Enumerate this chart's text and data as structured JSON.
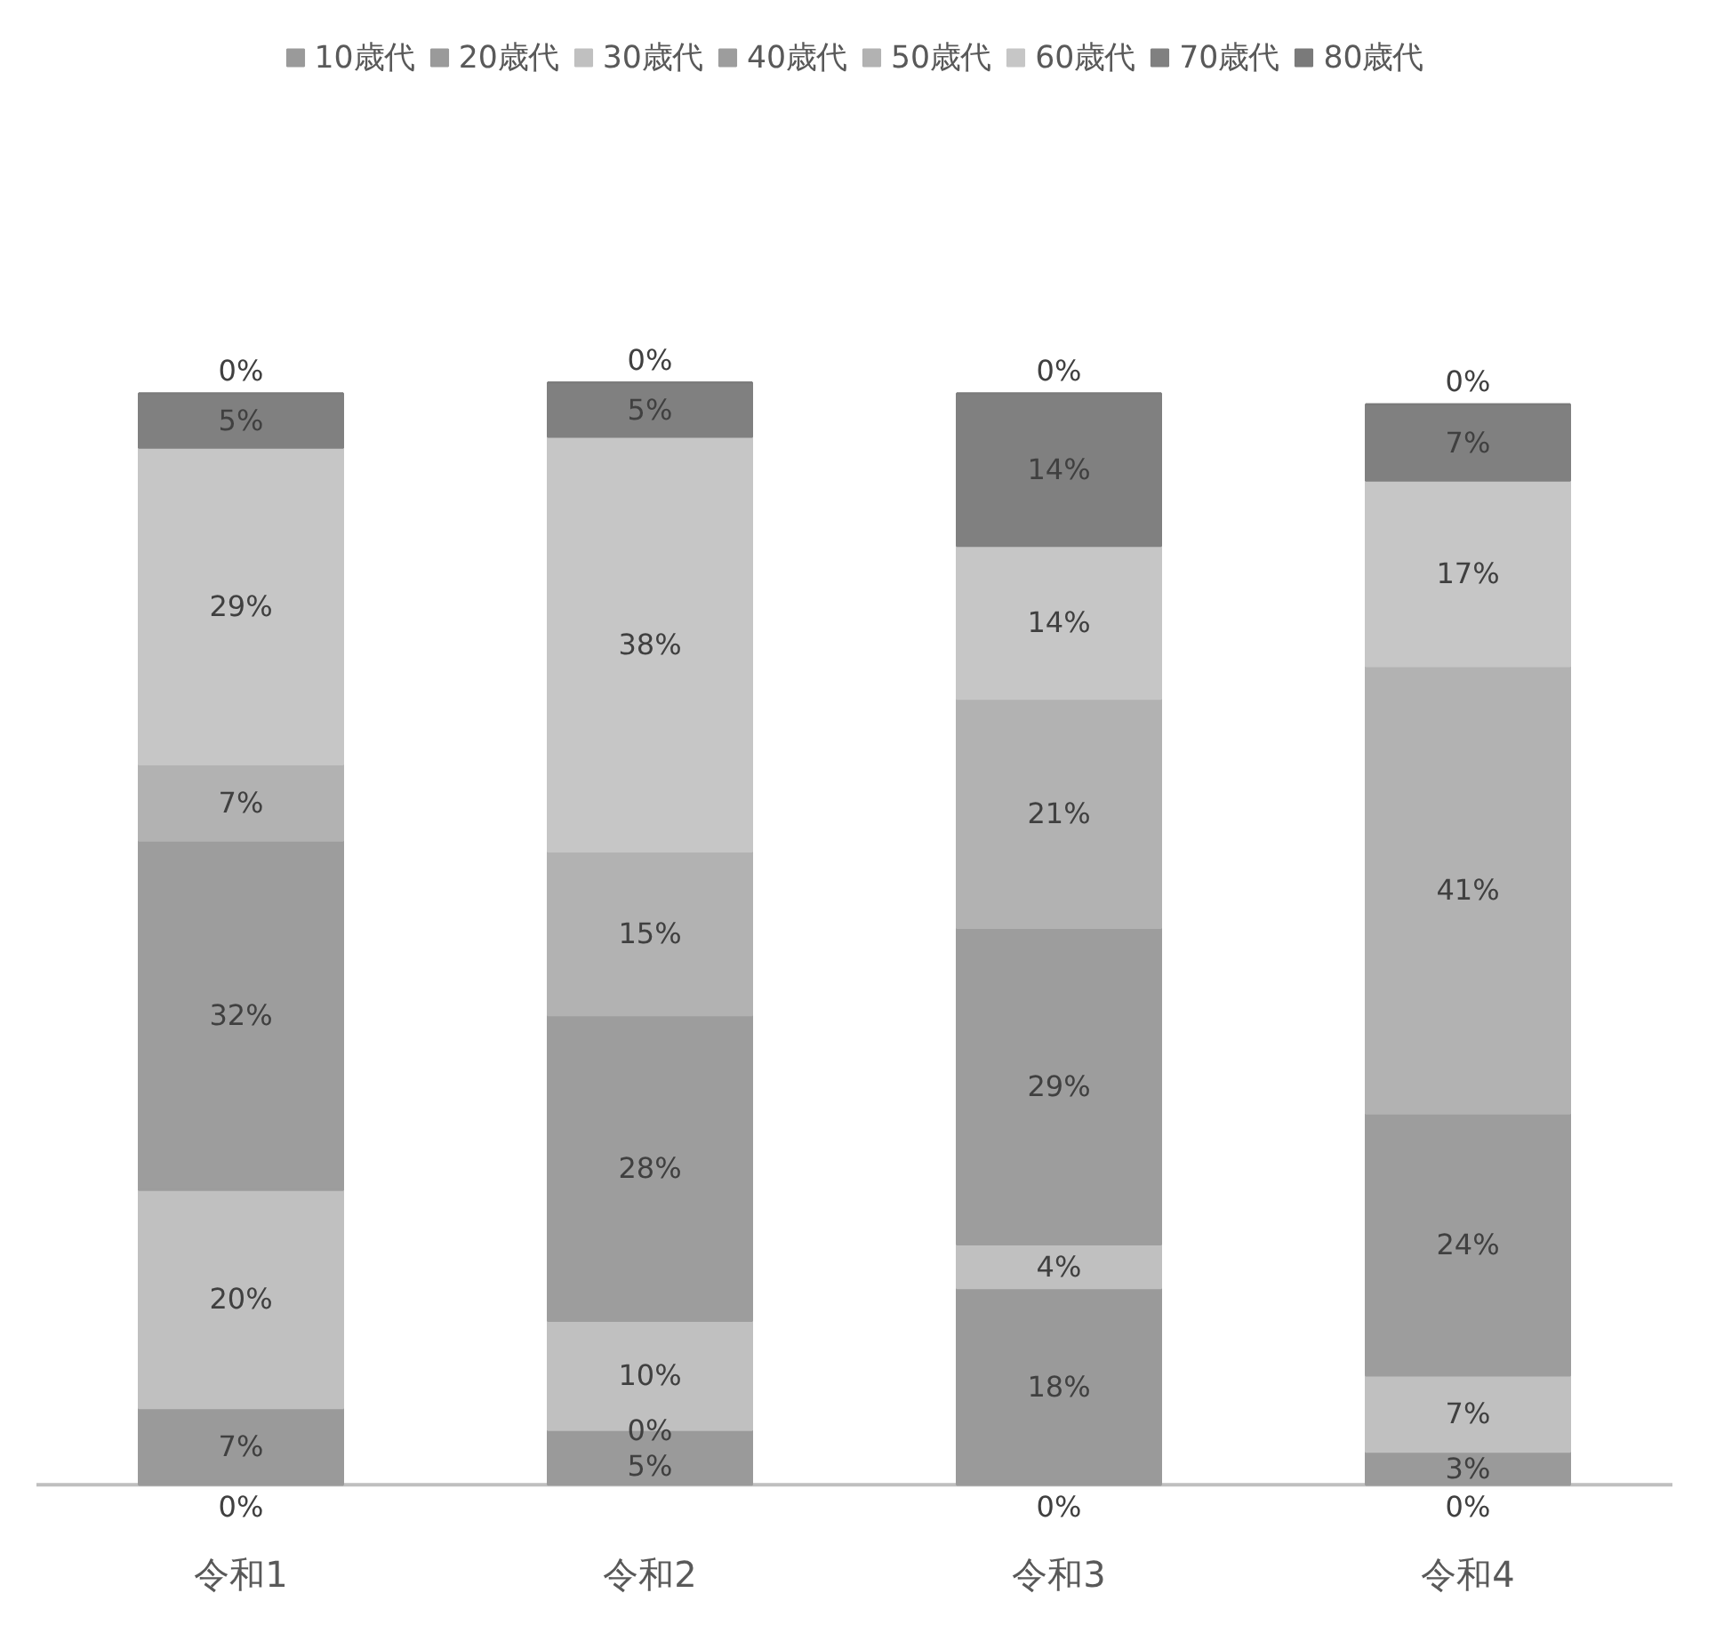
{
  "chart_data": {
    "type": "bar",
    "stacked": true,
    "data_labels": true,
    "legend": "top",
    "grid": false,
    "categories": [
      "令和1",
      "令和2",
      "令和3",
      "令和4"
    ],
    "series": [
      {
        "name": "10歳代",
        "color": "#9a9a9a",
        "values": [
          0,
          5,
          0,
          0
        ],
        "value_labels": [
          "0%",
          "5%",
          "0%",
          "0%"
        ]
      },
      {
        "name": "20歳代",
        "color": "#9a9a9a",
        "values": [
          7,
          0,
          18,
          3
        ],
        "value_labels": [
          "7%",
          "0%",
          "18%",
          "3%"
        ]
      },
      {
        "name": "30歳代",
        "color": "#c0c0c0",
        "values": [
          20,
          10,
          4,
          7
        ],
        "value_labels": [
          "20%",
          "10%",
          "4%",
          "7%"
        ]
      },
      {
        "name": "40歳代",
        "color": "#9d9d9d",
        "values": [
          32,
          28,
          29,
          24
        ],
        "value_labels": [
          "32%",
          "28%",
          "29%",
          "24%"
        ]
      },
      {
        "name": "50歳代",
        "color": "#b2b2b2",
        "values": [
          7,
          15,
          21,
          41
        ],
        "value_labels": [
          "7%",
          "15%",
          "21%",
          "41%"
        ]
      },
      {
        "name": "60歳代",
        "color": "#c6c6c6",
        "values": [
          29,
          38,
          14,
          17
        ],
        "value_labels": [
          "29%",
          "38%",
          "14%",
          "17%"
        ]
      },
      {
        "name": "70歳代",
        "color": "#808080",
        "values": [
          5,
          5,
          14,
          7
        ],
        "value_labels": [
          "5%",
          "5%",
          "14%",
          "7%"
        ]
      },
      {
        "name": "80歳代",
        "color": "#7a7a7a",
        "values": [
          0,
          0,
          0,
          0
        ],
        "value_labels": [
          "0%",
          "0%",
          "0%",
          "0%"
        ]
      }
    ]
  }
}
